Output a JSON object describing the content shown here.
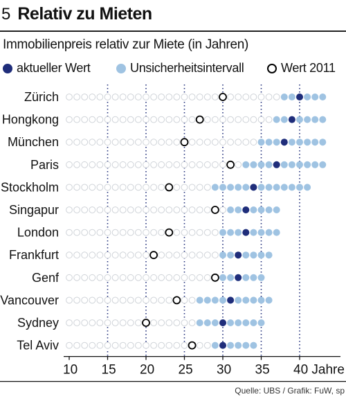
{
  "header": {
    "number": "5",
    "title": "Relativ zu Mieten"
  },
  "subtitle": "Immobilienpreis relativ zur Miete (in Jahren)",
  "legend": [
    {
      "label": "aktueller Wert",
      "color": "#1f2d7a",
      "kind": "filled"
    },
    {
      "label": "Unsicherheitsintervall",
      "color": "#9fc3e2",
      "kind": "filled"
    },
    {
      "label": "Wert 2011",
      "color": "#000000",
      "kind": "open"
    }
  ],
  "source": "Quelle: UBS / Grafik: FuW, sp",
  "chart_data": {
    "type": "scatter",
    "title": "Relativ zu Mieten",
    "subtitle": "Immobilienpreis relativ zur Miete (in Jahren)",
    "x_unit": "Jahre",
    "xlim": [
      10,
      43
    ],
    "x_ticks": [
      10,
      15,
      20,
      25,
      30,
      35,
      40
    ],
    "x_tick_labels": [
      "10",
      "15",
      "20",
      "25",
      "30",
      "35",
      "40 Jahre"
    ],
    "colors": {
      "current": "#1f2d7a",
      "interval": "#9fc3e2",
      "track": "#cfd3d8",
      "v2011": "#000000"
    },
    "categories": [
      "Zürich",
      "Hongkong",
      "München",
      "Paris",
      "Stockholm",
      "Singapur",
      "London",
      "Frankfurt",
      "Genf",
      "Vancouver",
      "Sydney",
      "Tel Aviv"
    ],
    "series": [
      {
        "name": "aktueller Wert",
        "values": [
          40,
          39,
          38,
          37,
          34,
          33,
          33,
          32,
          32,
          31,
          30,
          30
        ]
      },
      {
        "name": "Unsicherheitsintervall",
        "low": [
          37.5,
          36.8,
          35,
          32.6,
          29,
          30.8,
          29.8,
          29.8,
          29.8,
          27,
          27,
          29
        ],
        "high": [
          43,
          43,
          43,
          43,
          41,
          37,
          37,
          36,
          35,
          36,
          35,
          34
        ]
      },
      {
        "name": "Wert 2011",
        "values": [
          30,
          27,
          25,
          31,
          23,
          29,
          23,
          21,
          29,
          24,
          20,
          26
        ]
      }
    ]
  }
}
